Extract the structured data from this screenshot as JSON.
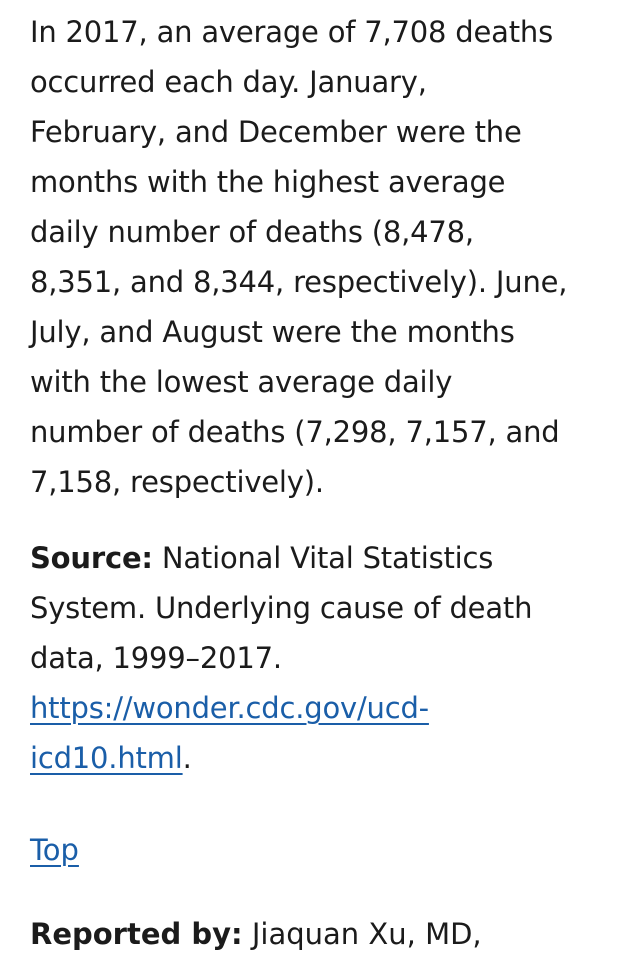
{
  "summary": {
    "lines": [
      "In 2017, an average of 7,708 deaths",
      "occurred each day. January,",
      "February, and December were the",
      "months with the highest average",
      "daily number of deaths (8,478,",
      "8,351, and 8,344, respectively). June,",
      "July, and August were the months",
      "with the lowest average daily",
      "number of deaths (7,298, 7,157, and",
      "7,158, respectively)."
    ]
  },
  "source": {
    "label": "Source:",
    "lines": [
      "National Vital Statistics",
      "System. Underlying cause of death",
      "data, 1999–2017."
    ],
    "url_lines": [
      "https://wonder.cdc.gov/ucd-",
      "icd10.html"
    ],
    "trailing_punct": "."
  },
  "top_link": "Top",
  "reported_by": {
    "label": "Reported by:",
    "text": "Jiaquan Xu, MD,"
  }
}
